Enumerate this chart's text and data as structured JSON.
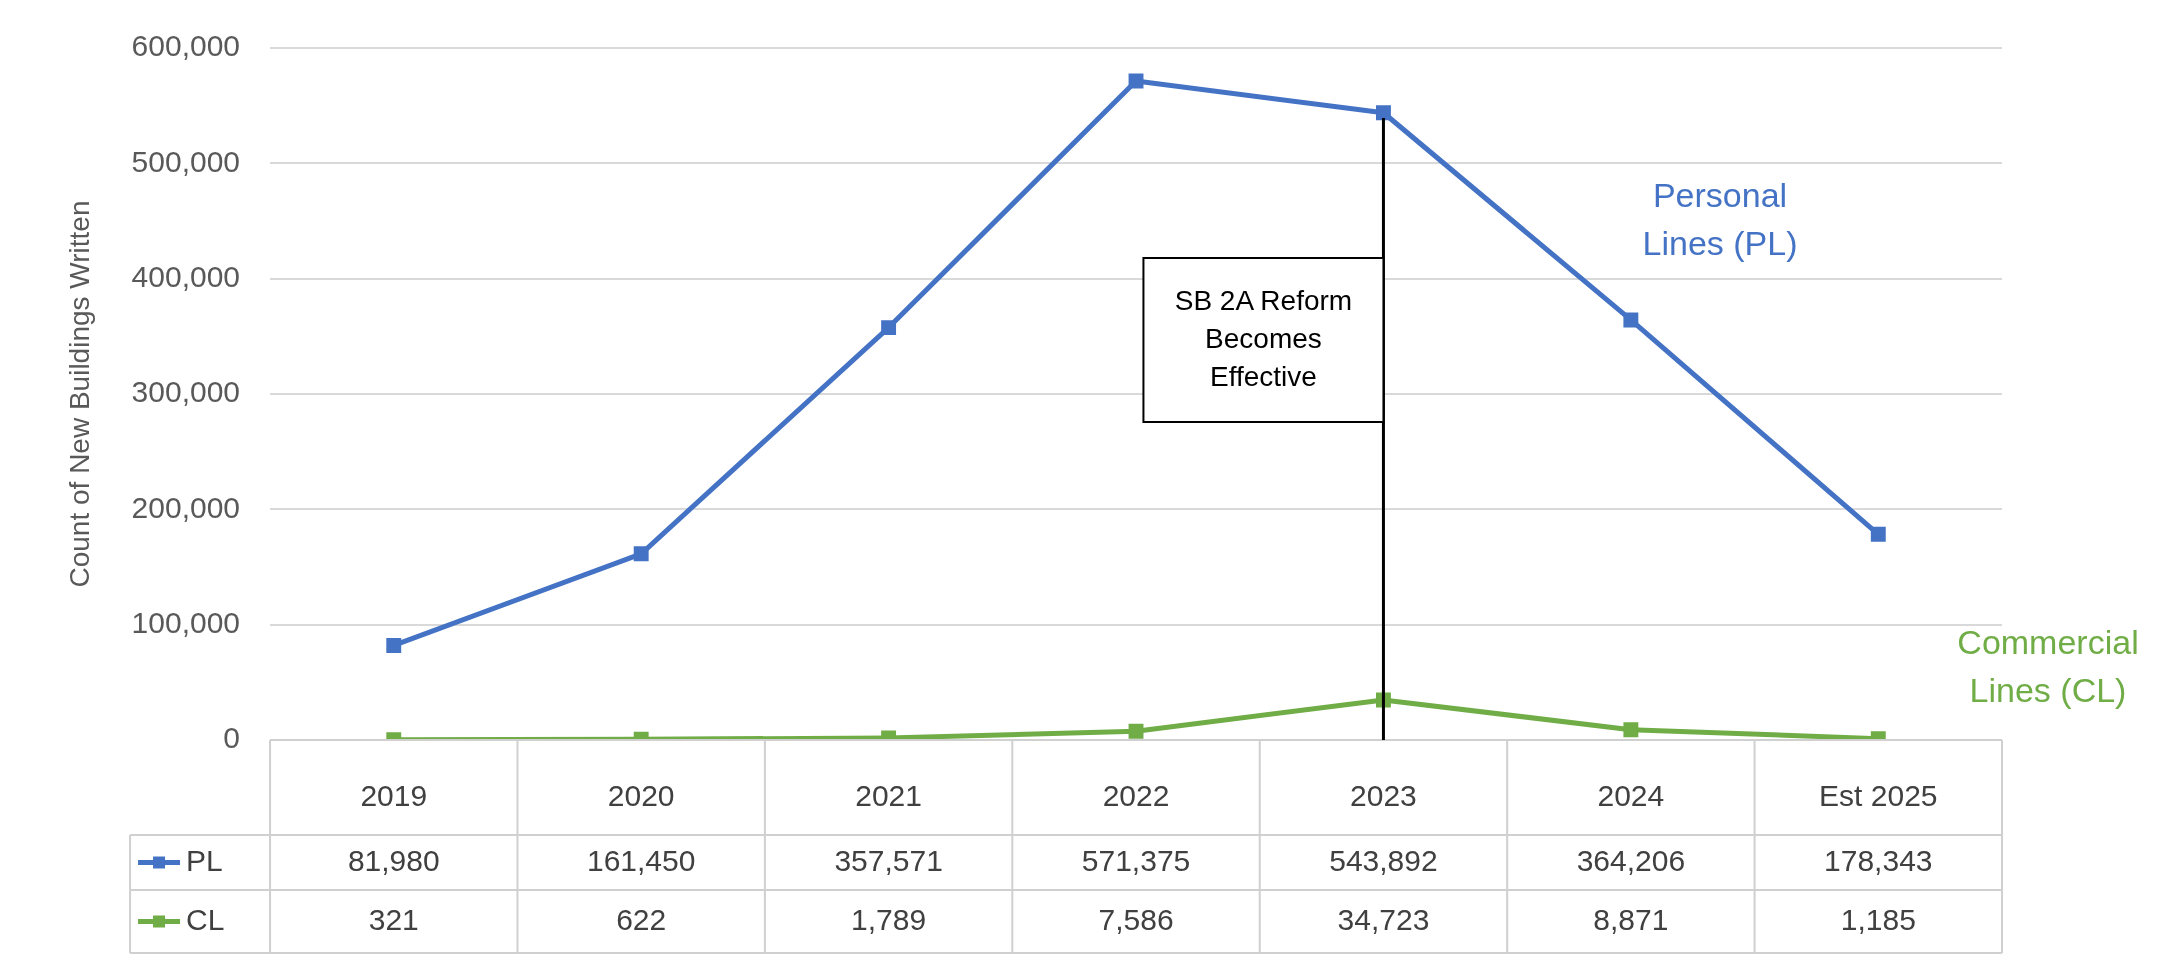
{
  "chart_data": {
    "type": "line",
    "ylabel": "Count of New Buildings Written",
    "categories": [
      "2019",
      "2020",
      "2021",
      "2022",
      "2023",
      "2024",
      "Est 2025"
    ],
    "series": [
      {
        "name": "PL",
        "color": "#4472c4",
        "values": [
          81980,
          161450,
          357571,
          571375,
          543892,
          364206,
          178343
        ],
        "value_labels": [
          "81,980",
          "161,450",
          "357,571",
          "571,375",
          "543,892",
          "364,206",
          "178,343"
        ]
      },
      {
        "name": "CL",
        "color": "#70ad47",
        "values": [
          321,
          622,
          1789,
          7586,
          34723,
          8871,
          1185
        ],
        "value_labels": [
          "321",
          "622",
          "1,789",
          "7,586",
          "34,723",
          "8,871",
          "1,185"
        ]
      }
    ],
    "ylim": [
      0,
      600000
    ],
    "yticks": [
      {
        "value": 0,
        "label": "0"
      },
      {
        "value": 100000,
        "label": "100,000"
      },
      {
        "value": 200000,
        "label": "200,000"
      },
      {
        "value": 300000,
        "label": "300,000"
      },
      {
        "value": 400000,
        "label": "400,000"
      },
      {
        "value": 500000,
        "label": "500,000"
      },
      {
        "value": 600000,
        "label": "600,000"
      }
    ],
    "grid": "y",
    "legend": "bottom left",
    "marker": "square",
    "line_style": "solid",
    "ref_lines": [
      {
        "axis": "x",
        "value": "2023",
        "label": "SB 2A Reform Becomes Effective",
        "color": "#000000"
      }
    ],
    "annotations": [
      "Personal Lines (PL)",
      "Commercial Lines (CL)"
    ]
  }
}
